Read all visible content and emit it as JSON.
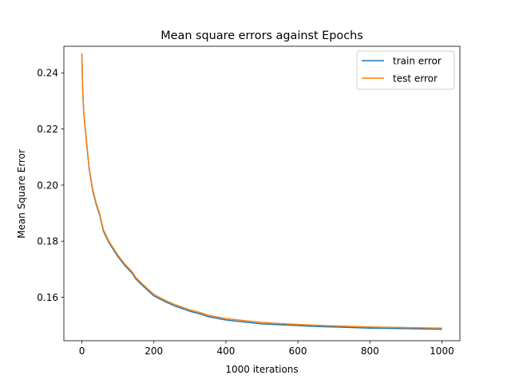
{
  "chart_data": {
    "type": "line",
    "title": "Mean square errors against Epochs",
    "xlabel": "1000 iterations",
    "ylabel": "Mean Square Error",
    "xlim": [
      -50,
      1050
    ],
    "ylim": [
      0.1445,
      0.2495
    ],
    "xticks": [
      0,
      200,
      400,
      600,
      800,
      1000
    ],
    "yticks": [
      0.16,
      0.18,
      0.2,
      0.22,
      0.24
    ],
    "ytick_labels": [
      "0.16",
      "0.18",
      "0.20",
      "0.22",
      "0.24"
    ],
    "legend_position": "top-right",
    "grid": false,
    "series": [
      {
        "name": "train error",
        "color": "#1f77b4",
        "x": [
          0,
          2,
          5,
          10,
          15,
          20,
          30,
          40,
          50,
          60,
          75,
          90,
          100,
          120,
          140,
          150,
          170,
          200,
          230,
          260,
          300,
          330,
          350,
          400,
          450,
          500,
          550,
          600,
          650,
          700,
          750,
          800,
          850,
          900,
          950,
          1000
        ],
        "y": [
          0.2465,
          0.235,
          0.226,
          0.219,
          0.2125,
          0.206,
          0.198,
          0.193,
          0.189,
          0.1835,
          0.1795,
          0.1765,
          0.1745,
          0.1712,
          0.1685,
          0.1665,
          0.164,
          0.1605,
          0.1585,
          0.1568,
          0.155,
          0.154,
          0.1531,
          0.1519,
          0.1512,
          0.1505,
          0.1502,
          0.1499,
          0.1496,
          0.1494,
          0.1492,
          0.149,
          0.1489,
          0.1488,
          0.1487,
          0.1486
        ]
      },
      {
        "name": "test error",
        "color": "#ff7f0e",
        "x": [
          0,
          2,
          5,
          10,
          15,
          20,
          30,
          40,
          50,
          60,
          75,
          90,
          100,
          120,
          140,
          150,
          170,
          200,
          230,
          260,
          300,
          330,
          350,
          400,
          450,
          500,
          550,
          600,
          650,
          700,
          750,
          800,
          850,
          900,
          950,
          1000
        ],
        "y": [
          0.247,
          0.2355,
          0.2265,
          0.2195,
          0.213,
          0.2065,
          0.1985,
          0.1935,
          0.1895,
          0.184,
          0.18,
          0.177,
          0.175,
          0.1717,
          0.169,
          0.167,
          0.1645,
          0.161,
          0.159,
          0.1573,
          0.1555,
          0.1545,
          0.1536,
          0.1524,
          0.1517,
          0.151,
          0.1506,
          0.1503,
          0.15,
          0.1498,
          0.1496,
          0.1494,
          0.1493,
          0.1492,
          0.1491,
          0.149
        ]
      }
    ]
  }
}
